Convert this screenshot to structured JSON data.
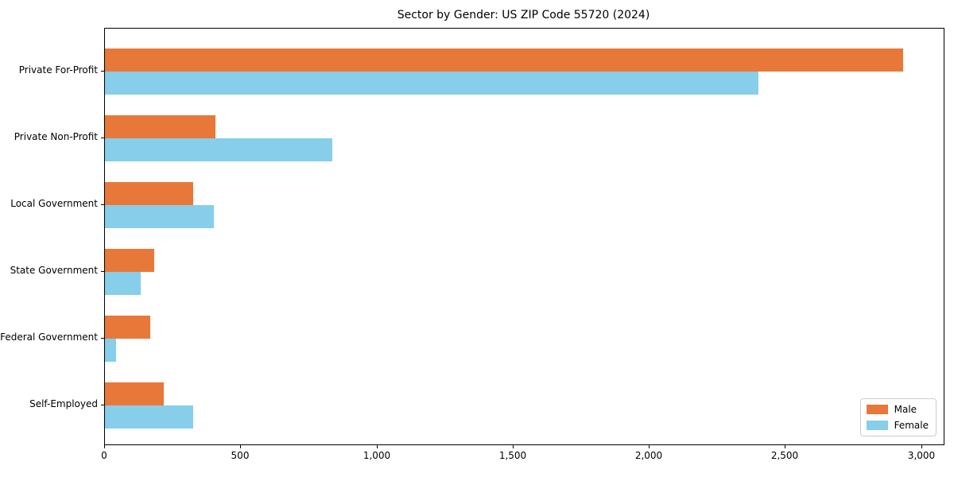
{
  "chart_data": {
    "type": "bar",
    "orientation": "horizontal",
    "title": "Sector by Gender: US ZIP Code 55720 (2024)",
    "categories": [
      "Private For-Profit",
      "Private Non-Profit",
      "Local Government",
      "State Government",
      "Federal Government",
      "Self-Employed"
    ],
    "series": [
      {
        "name": "Male",
        "color": "#e8783a",
        "values": [
          2930,
          405,
          325,
          180,
          165,
          215
        ]
      },
      {
        "name": "Female",
        "color": "#87ceeb",
        "values": [
          2400,
          835,
          400,
          130,
          40,
          325
        ]
      }
    ],
    "xlabel": "",
    "ylabel": "",
    "xlim": [
      0,
      3080
    ],
    "xticks": [
      0,
      500,
      1000,
      1500,
      2000,
      2500,
      3000
    ],
    "xtick_labels": [
      "0",
      "500",
      "1,000",
      "1,500",
      "2,000",
      "2,500",
      "3,000"
    ],
    "grid": false,
    "legend_position": "lower right",
    "background_color": "#ffffff",
    "spine_color": "#000000"
  }
}
